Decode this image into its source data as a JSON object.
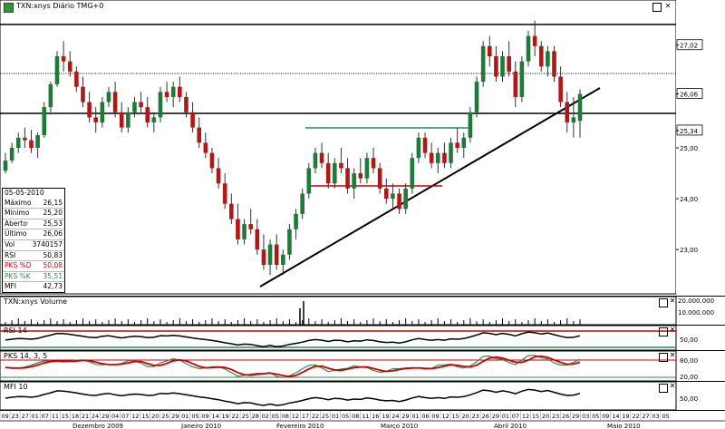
{
  "main_title": "TXN:xnys Diário TMG+0",
  "volume_title": "TXN:xnys Volume",
  "rsi_title": "RSI 14",
  "pks_title": "PKS 14, 3, 5",
  "mfi_title": "MFI 10",
  "price_axis": {
    "labels": [
      "27,02",
      "26,06",
      "25,34",
      "25,00",
      "24,00",
      "23,00"
    ],
    "values": [
      27.02,
      26.06,
      25.34,
      25.0,
      24.0,
      23.0
    ],
    "highlighted": [
      "27,02",
      "26,06",
      "25,34"
    ]
  },
  "volume_axis": {
    "labels": [
      "20.000.000",
      "10.000.000"
    ]
  },
  "rsi_axis": {
    "labels": [
      "50,00"
    ]
  },
  "pks_axis": {
    "labels": [
      "80,00",
      "20,00"
    ]
  },
  "mfi_axis": {
    "labels": [
      "50,00"
    ]
  },
  "ohlc_panel": {
    "date": "05-05-2010",
    "rows": [
      {
        "label": "Máximo",
        "value": "26,15"
      },
      {
        "label": "Mínimo",
        "value": "25,20"
      },
      {
        "label": "Aberto",
        "value": "25,53"
      },
      {
        "label": "Último",
        "value": "26,06"
      },
      {
        "label": "Vol",
        "value": "3740157"
      },
      {
        "label": "RSI",
        "value": "50,83"
      },
      {
        "label": "PKS %D",
        "value": "50,08",
        "color": "#e00000"
      },
      {
        "label": "PKS %K",
        "value": "35,51",
        "color": "#2e8b57"
      },
      {
        "label": "MFI",
        "value": "42,73"
      }
    ]
  },
  "date_axis": {
    "days": [
      "09",
      "23",
      "27",
      "01",
      "07",
      "11",
      "15",
      "18",
      "21",
      "24",
      "29",
      "04",
      "07",
      "12",
      "15",
      "20",
      "25",
      "29",
      "01",
      "05",
      "09",
      "14",
      "19",
      "22",
      "25",
      "28",
      "02",
      "05",
      "08",
      "12",
      "17",
      "22",
      "25",
      "01",
      "05",
      "08",
      "11",
      "16",
      "19",
      "24",
      "29",
      "01",
      "06",
      "09",
      "12",
      "15",
      "20",
      "23",
      "26",
      "29",
      "01",
      "07",
      "12",
      "15",
      "20",
      "23",
      "26",
      "29",
      "03",
      "05",
      "09",
      "14",
      "19",
      "22",
      "27",
      "03",
      "05"
    ],
    "months": [
      "Dezembro 2009",
      "Janeiro 2010",
      "Fevereiro 2010",
      "Março 2010",
      "Abril 2010",
      "Maio 2010"
    ]
  },
  "chart_data": {
    "type": "candlestick",
    "ylim": [
      22.2,
      27.8
    ],
    "candles": [
      [
        24.55,
        24.9,
        24.5,
        24.75
      ],
      [
        24.75,
        25.1,
        24.7,
        25.0
      ],
      [
        25.0,
        25.3,
        24.9,
        25.2
      ],
      [
        25.2,
        25.4,
        25.0,
        25.15
      ],
      [
        25.15,
        25.35,
        24.9,
        25.0
      ],
      [
        25.0,
        25.3,
        24.8,
        25.25
      ],
      [
        25.25,
        25.9,
        25.2,
        25.8
      ],
      [
        25.8,
        26.3,
        25.7,
        26.25
      ],
      [
        26.25,
        26.9,
        26.2,
        26.8
      ],
      [
        26.8,
        27.1,
        26.5,
        26.7
      ],
      [
        26.7,
        26.9,
        26.4,
        26.5
      ],
      [
        26.5,
        26.6,
        26.1,
        26.2
      ],
      [
        26.2,
        26.4,
        25.8,
        25.9
      ],
      [
        25.9,
        26.1,
        25.5,
        25.6
      ],
      [
        25.6,
        25.8,
        25.3,
        25.5
      ],
      [
        25.5,
        26.0,
        25.4,
        25.9
      ],
      [
        25.9,
        26.2,
        25.8,
        26.1
      ],
      [
        26.1,
        26.3,
        25.6,
        25.7
      ],
      [
        25.7,
        25.9,
        25.3,
        25.4
      ],
      [
        25.4,
        25.8,
        25.3,
        25.7
      ],
      [
        25.7,
        26.0,
        25.6,
        25.9
      ],
      [
        25.9,
        26.1,
        25.7,
        25.8
      ],
      [
        25.8,
        26.0,
        25.4,
        25.5
      ],
      [
        25.5,
        25.7,
        25.3,
        25.6
      ],
      [
        25.6,
        26.2,
        25.5,
        26.1
      ],
      [
        26.1,
        26.3,
        25.9,
        26.0
      ],
      [
        26.0,
        26.3,
        25.8,
        26.2
      ],
      [
        26.2,
        26.4,
        25.9,
        26.0
      ],
      [
        26.0,
        26.1,
        25.6,
        25.7
      ],
      [
        25.7,
        25.9,
        25.3,
        25.4
      ],
      [
        25.4,
        25.6,
        25.0,
        25.1
      ],
      [
        25.1,
        25.3,
        24.8,
        24.9
      ],
      [
        24.9,
        25.0,
        24.5,
        24.6
      ],
      [
        24.6,
        24.8,
        24.2,
        24.3
      ],
      [
        24.3,
        24.5,
        23.8,
        23.9
      ],
      [
        23.9,
        24.1,
        23.5,
        23.6
      ],
      [
        23.6,
        23.9,
        23.1,
        23.2
      ],
      [
        23.2,
        23.6,
        23.1,
        23.5
      ],
      [
        23.5,
        23.8,
        23.3,
        23.4
      ],
      [
        23.4,
        23.6,
        22.9,
        23.0
      ],
      [
        23.0,
        23.3,
        22.6,
        22.7
      ],
      [
        22.7,
        23.2,
        22.5,
        23.1
      ],
      [
        23.1,
        23.3,
        22.6,
        22.7
      ],
      [
        22.7,
        23.0,
        22.5,
        22.9
      ],
      [
        22.9,
        23.5,
        22.8,
        23.4
      ],
      [
        23.4,
        23.8,
        23.2,
        23.7
      ],
      [
        23.7,
        24.2,
        23.6,
        24.1
      ],
      [
        24.1,
        24.7,
        24.0,
        24.6
      ],
      [
        24.6,
        25.0,
        24.5,
        24.9
      ],
      [
        24.9,
        25.1,
        24.6,
        24.7
      ],
      [
        24.7,
        24.9,
        24.2,
        24.3
      ],
      [
        24.3,
        24.8,
        24.2,
        24.7
      ],
      [
        24.7,
        25.0,
        24.5,
        24.6
      ],
      [
        24.6,
        24.8,
        24.1,
        24.2
      ],
      [
        24.2,
        24.6,
        24.0,
        24.5
      ],
      [
        24.5,
        24.8,
        24.3,
        24.4
      ],
      [
        24.4,
        24.9,
        24.3,
        24.8
      ],
      [
        24.8,
        25.0,
        24.5,
        24.6
      ],
      [
        24.6,
        24.7,
        24.1,
        24.2
      ],
      [
        24.2,
        24.4,
        23.9,
        24.0
      ],
      [
        24.0,
        24.3,
        23.8,
        24.1
      ],
      [
        24.1,
        24.2,
        23.7,
        23.8
      ],
      [
        23.8,
        24.3,
        23.7,
        24.2
      ],
      [
        24.2,
        24.9,
        24.1,
        24.8
      ],
      [
        24.8,
        25.3,
        24.7,
        25.2
      ],
      [
        25.2,
        25.3,
        24.8,
        24.9
      ],
      [
        24.9,
        25.1,
        24.6,
        24.7
      ],
      [
        24.7,
        25.0,
        24.5,
        24.9
      ],
      [
        24.9,
        25.1,
        24.6,
        24.7
      ],
      [
        24.7,
        25.2,
        24.6,
        25.1
      ],
      [
        25.1,
        25.4,
        24.9,
        25.0
      ],
      [
        25.0,
        25.3,
        24.8,
        25.2
      ],
      [
        25.2,
        25.8,
        25.1,
        25.7
      ],
      [
        25.7,
        26.4,
        25.6,
        26.3
      ],
      [
        26.3,
        27.1,
        26.2,
        27.0
      ],
      [
        27.0,
        27.2,
        26.6,
        26.8
      ],
      [
        26.8,
        27.0,
        26.3,
        26.4
      ],
      [
        26.4,
        26.9,
        26.3,
        26.8
      ],
      [
        26.8,
        27.1,
        26.4,
        26.5
      ],
      [
        26.5,
        26.7,
        25.8,
        26.0
      ],
      [
        26.0,
        26.8,
        25.9,
        26.7
      ],
      [
        26.7,
        27.3,
        26.6,
        27.2
      ],
      [
        27.2,
        27.5,
        26.8,
        27.0
      ],
      [
        27.0,
        27.1,
        26.5,
        26.6
      ],
      [
        26.6,
        27.0,
        26.4,
        26.9
      ],
      [
        26.9,
        27.0,
        26.3,
        26.4
      ],
      [
        26.4,
        26.6,
        25.8,
        25.9
      ],
      [
        25.9,
        26.1,
        25.3,
        25.5
      ],
      [
        25.5,
        26.0,
        25.2,
        25.6
      ],
      [
        25.53,
        26.15,
        25.2,
        26.06
      ]
    ]
  }
}
